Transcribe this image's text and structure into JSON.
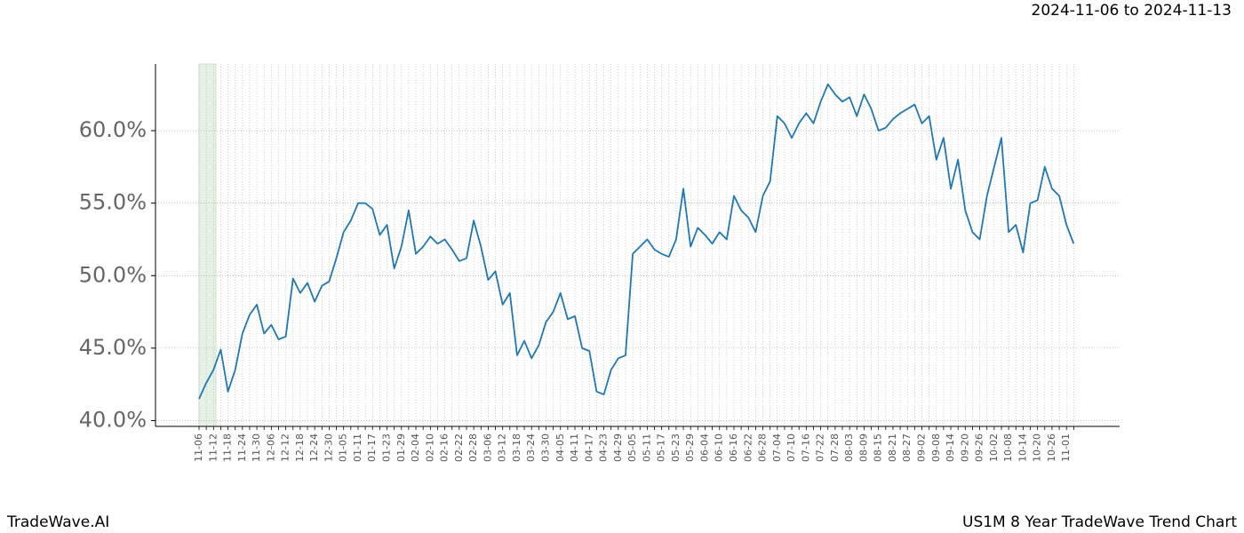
{
  "chart_data": {
    "type": "line",
    "subtitle": "2024-11-06 to 2024-11-13",
    "footer_left": "TradeWave.AI",
    "title": "US1M 8 Year TradeWave Trend Chart",
    "categories": [
      "11-06",
      null,
      "11-12",
      null,
      "11-18",
      null,
      "11-24",
      null,
      "11-30",
      null,
      "12-06",
      null,
      "12-12",
      null,
      "12-18",
      null,
      "12-24",
      null,
      "12-30",
      null,
      "01-05",
      null,
      "01-11",
      null,
      "01-17",
      null,
      "01-23",
      null,
      "01-29",
      null,
      "02-04",
      null,
      "02-10",
      null,
      "02-16",
      null,
      "02-22",
      null,
      "02-28",
      null,
      "03-06",
      null,
      "03-12",
      null,
      "03-18",
      null,
      "03-24",
      null,
      "03-30",
      null,
      "04-05",
      null,
      "04-11",
      null,
      "04-17",
      null,
      "04-23",
      null,
      "04-29",
      null,
      "05-05",
      null,
      "05-11",
      null,
      "05-17",
      null,
      "05-23",
      null,
      "05-29",
      null,
      "06-04",
      null,
      "06-10",
      null,
      "06-16",
      null,
      "06-22",
      null,
      "06-28",
      null,
      "07-04",
      null,
      "07-10",
      null,
      "07-16",
      null,
      "07-22",
      null,
      "07-28",
      null,
      "08-03",
      null,
      "08-09",
      null,
      "08-15",
      null,
      "08-21",
      null,
      "08-27",
      null,
      "09-02",
      null,
      "09-08",
      null,
      "09-14",
      null,
      "09-20",
      null,
      "09-26",
      null,
      "10-02",
      null,
      "10-08",
      null,
      "10-14",
      null,
      "10-20",
      null,
      "10-26",
      null,
      "11-01",
      null
    ],
    "series": [
      {
        "name": "US1M",
        "color": "#1f77b4",
        "values": [
          41.5,
          42.6,
          43.5,
          44.9,
          42.0,
          43.5,
          46.0,
          47.3,
          48.0,
          46.0,
          46.6,
          45.6,
          45.8,
          49.8,
          48.8,
          49.5,
          48.2,
          49.3,
          49.6,
          51.2,
          53.0,
          53.8,
          55.0,
          55.0,
          54.6,
          52.8,
          53.5,
          50.5,
          52.0,
          54.5,
          51.5,
          52.0,
          52.7,
          52.2,
          52.5,
          51.8,
          51.0,
          51.2,
          53.8,
          52.0,
          49.7,
          50.3,
          48.0,
          48.8,
          44.5,
          45.5,
          44.3,
          45.2,
          46.8,
          47.5,
          48.8,
          47.0,
          47.2,
          45.0,
          44.8,
          42.0,
          41.8,
          43.5,
          44.3,
          44.5,
          51.5,
          52.0,
          52.5,
          51.8,
          51.5,
          51.3,
          52.5,
          56.0,
          52.0,
          53.3,
          52.8,
          52.2,
          53.0,
          52.5,
          55.5,
          54.5,
          54.0,
          53.0,
          55.5,
          56.5,
          61.0,
          60.5,
          59.5,
          60.5,
          61.2,
          60.5,
          62.0,
          63.2,
          62.5,
          62.0,
          62.3,
          61.0,
          62.5,
          61.5,
          60.0,
          60.2,
          60.8,
          61.2,
          61.5,
          61.8,
          60.5,
          61.0,
          58.0,
          59.5,
          56.0,
          58.0,
          54.5,
          53.0,
          52.5,
          55.5,
          57.5,
          59.5,
          53.0,
          53.5,
          51.6,
          55.0,
          55.2,
          57.5,
          56.0,
          55.5,
          53.5,
          52.2
        ]
      }
    ],
    "ylim": [
      39.6,
      64.6
    ],
    "yticks": [
      {
        "value": 40,
        "label": "40.0%"
      },
      {
        "value": 45,
        "label": "45.0%"
      },
      {
        "value": 50,
        "label": "50.0%"
      },
      {
        "value": 55,
        "label": "55.0%"
      },
      {
        "value": 60,
        "label": "60.0%"
      }
    ],
    "grid": true
  }
}
